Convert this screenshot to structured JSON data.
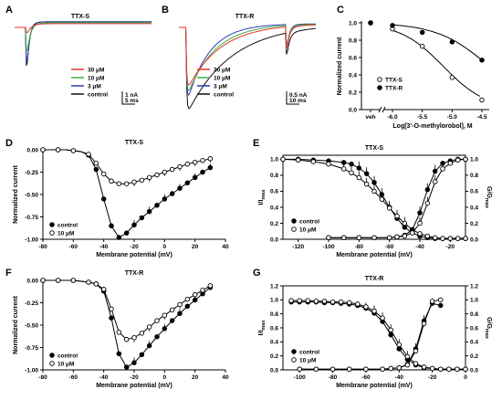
{
  "colors": {
    "c30": "#e8342e",
    "c10": "#3fae3a",
    "c3": "#2b3bb3",
    "ctl": "#111111"
  },
  "panels": [
    {
      "id": "A",
      "label": "A",
      "title": "TTX-S",
      "type": "traces",
      "legend": [
        "30 μM",
        "10 μM",
        "3 μM",
        "control"
      ],
      "scale": {
        "y": "1 nA",
        "x": "5 ms"
      },
      "traces": [
        {
          "name": "control",
          "color_key": "ctl",
          "peak": 1.0,
          "tau_dec": 0.018,
          "late": -0.06
        },
        {
          "name": "3 μM",
          "color_key": "c3",
          "peak": 0.88,
          "tau_dec": 0.02,
          "late": -0.06
        },
        {
          "name": "10 μM",
          "color_key": "c10",
          "peak": 0.56,
          "tau_dec": 0.024,
          "late": -0.05
        },
        {
          "name": "30 μM",
          "color_key": "c30",
          "peak": 0.16,
          "tau_dec": 0.03,
          "late": -0.04
        }
      ]
    },
    {
      "id": "B",
      "label": "B",
      "title": "TTX-R",
      "type": "traces",
      "legend": [
        "30 μM",
        "10 μM",
        "3 μM",
        "control"
      ],
      "scale": {
        "y": "0.5 nA",
        "x": "10 ms"
      },
      "traces": [
        {
          "name": "control",
          "color_key": "ctl",
          "peak": 1.0,
          "tau_dec": 0.32,
          "late": -0.04
        },
        {
          "name": "3 μM",
          "color_key": "c3",
          "peak": 0.9,
          "tau_dec": 0.16,
          "late": -0.04
        },
        {
          "name": "10 μM",
          "color_key": "c10",
          "peak": 0.82,
          "tau_dec": 0.2,
          "late": -0.04
        },
        {
          "name": "30 μM",
          "color_key": "c30",
          "peak": 0.74,
          "tau_dec": 0.24,
          "late": -0.04
        }
      ]
    },
    {
      "id": "C",
      "label": "C",
      "type": "dose",
      "ylabel": "Normalized current",
      "xlabel": "Log[3'-O-methylorobol], M",
      "x_ticks": [
        "veh",
        "-6.0",
        "-5.5",
        "-5.0",
        "-4.5"
      ],
      "y_ticks": [
        "0.0",
        "0.2",
        "0.4",
        "0.6",
        "0.8",
        "1.0"
      ],
      "legend": [
        "TTX-S",
        "TTX-R"
      ],
      "series": [
        {
          "name": "TTX-S",
          "marker": "open",
          "x": [
            "veh",
            -6.0,
            -5.5,
            -5.0,
            -4.5
          ],
          "y": [
            1.0,
            0.93,
            0.73,
            0.37,
            0.11
          ],
          "ic50": -5.15,
          "hill": 1.2
        },
        {
          "name": "TTX-R",
          "marker": "filled",
          "x": [
            "veh",
            -6.0,
            -5.5,
            -5.0,
            -4.5
          ],
          "y": [
            1.0,
            0.97,
            0.89,
            0.78,
            0.57
          ],
          "ic50": -4.38,
          "hill": 1.0
        }
      ]
    },
    {
      "id": "D",
      "label": "D",
      "title": "TTX-S",
      "type": "iv",
      "ylabel": "Normalized current",
      "xlabel": "Membrane potential (mV)",
      "x_ticks": [
        "-80",
        "-60",
        "-40",
        "-20",
        "0",
        "20",
        "40"
      ],
      "y_ticks": [
        "0.00",
        "-0.25",
        "-0.50",
        "-0.75",
        "-1.00"
      ],
      "legend": [
        "control",
        "10 μM"
      ],
      "series": [
        {
          "name": "control",
          "marker": "filled",
          "x": [
            -80,
            -75,
            -70,
            -65,
            -60,
            -55,
            -50,
            -45,
            -40,
            -35,
            -30,
            -25,
            -20,
            -15,
            -10,
            -5,
            0,
            5,
            10,
            15,
            20,
            25,
            30
          ],
          "y": [
            0,
            0,
            0,
            0,
            -0.01,
            -0.02,
            -0.06,
            -0.22,
            -0.55,
            -0.85,
            -0.98,
            -0.93,
            -0.84,
            -0.76,
            -0.69,
            -0.62,
            -0.55,
            -0.49,
            -0.43,
            -0.37,
            -0.31,
            -0.25,
            -0.2
          ]
        },
        {
          "name": "10 μM",
          "marker": "open",
          "x": [
            -80,
            -75,
            -70,
            -65,
            -60,
            -55,
            -50,
            -45,
            -40,
            -35,
            -30,
            -25,
            -20,
            -15,
            -10,
            -5,
            0,
            5,
            10,
            15,
            20,
            25,
            30
          ],
          "y": [
            0,
            0,
            0,
            0,
            -0.01,
            -0.02,
            -0.05,
            -0.15,
            -0.27,
            -0.35,
            -0.38,
            -0.38,
            -0.36,
            -0.34,
            -0.31,
            -0.28,
            -0.25,
            -0.22,
            -0.19,
            -0.16,
            -0.14,
            -0.12,
            -0.1
          ]
        }
      ]
    },
    {
      "id": "E",
      "label": "E",
      "title": "TTX-S",
      "type": "gv",
      "ylabel_left": "I/I",
      "ylabel_left_sub": "max",
      "ylabel_right": "G/G",
      "ylabel_right_sub": "max",
      "xlabel": "Membrane potential (mV)",
      "x_ticks": [
        "-120",
        "-100",
        "-80",
        "-60",
        "-40",
        "-20"
      ],
      "y_ticks": [
        "0.0",
        "0.2",
        "0.4",
        "0.6",
        "0.8",
        "1.0"
      ],
      "legend": [
        "control",
        "10 μM"
      ],
      "series": [
        {
          "name": "control",
          "marker": "filled",
          "x": [
            -130,
            -120,
            -110,
            -100,
            -90,
            -85,
            -80,
            -75,
            -70,
            -65,
            -60,
            -55,
            -50,
            -45,
            -40,
            -35,
            -30,
            -25,
            -20,
            -15,
            -10
          ],
          "y": [
            1.0,
            1.0,
            0.99,
            0.98,
            0.96,
            0.94,
            0.89,
            0.82,
            0.71,
            0.56,
            0.4,
            0.26,
            0.15,
            0.08,
            0.04,
            0.02,
            0.01,
            0.01,
            0.01,
            0.01,
            0.01
          ]
        },
        {
          "name": "10 μM",
          "marker": "open",
          "x": [
            -130,
            -120,
            -110,
            -100,
            -90,
            -85,
            -80,
            -75,
            -70,
            -65,
            -60,
            -55,
            -50,
            -45,
            -40,
            -35,
            -30,
            -25,
            -20,
            -15,
            -10
          ],
          "y": [
            1.0,
            0.99,
            0.97,
            0.94,
            0.88,
            0.83,
            0.77,
            0.69,
            0.6,
            0.5,
            0.39,
            0.29,
            0.2,
            0.12,
            0.07,
            0.04,
            0.02,
            0.01,
            0.01,
            0.01,
            0.01
          ]
        },
        {
          "name": "control G",
          "marker": "filled",
          "x": [
            -100,
            -90,
            -80,
            -70,
            -60,
            -55,
            -50,
            -45,
            -40,
            -35,
            -30,
            -25,
            -20,
            -15,
            -10
          ],
          "y": [
            0.02,
            0.02,
            0.02,
            0.02,
            0.02,
            0.03,
            0.05,
            0.12,
            0.33,
            0.62,
            0.85,
            0.95,
            0.98,
            1.0,
            1.0
          ]
        },
        {
          "name": "10 μM G",
          "marker": "open",
          "x": [
            -100,
            -90,
            -80,
            -70,
            -60,
            -55,
            -50,
            -45,
            -40,
            -35,
            -30,
            -25,
            -20,
            -15,
            -10
          ],
          "y": [
            0.02,
            0.02,
            0.02,
            0.02,
            0.02,
            0.03,
            0.04,
            0.08,
            0.2,
            0.45,
            0.72,
            0.88,
            0.95,
            0.99,
            1.0
          ]
        }
      ]
    },
    {
      "id": "F",
      "label": "F",
      "title": "TTX-R",
      "type": "iv",
      "ylabel": "Normalized current",
      "xlabel": "Membrane potential (mV)",
      "x_ticks": [
        "-80",
        "-60",
        "-40",
        "-20",
        "0",
        "20",
        "40"
      ],
      "y_ticks": [
        "0.00",
        "-0.25",
        "-0.50",
        "-0.75",
        "-1.00"
      ],
      "legend": [
        "control",
        "10 μM"
      ],
      "series": [
        {
          "name": "control",
          "marker": "filled",
          "x": [
            -80,
            -75,
            -70,
            -65,
            -60,
            -55,
            -50,
            -45,
            -40,
            -35,
            -30,
            -25,
            -20,
            -15,
            -10,
            -5,
            0,
            5,
            10,
            15,
            20,
            25,
            30
          ],
          "y": [
            0,
            0,
            0,
            0,
            0,
            -0.01,
            -0.02,
            -0.04,
            -0.12,
            -0.42,
            -0.82,
            -0.97,
            -0.92,
            -0.83,
            -0.73,
            -0.63,
            -0.54,
            -0.45,
            -0.37,
            -0.29,
            -0.22,
            -0.15,
            -0.08
          ]
        },
        {
          "name": "10 μM",
          "marker": "open",
          "x": [
            -80,
            -75,
            -70,
            -65,
            -60,
            -55,
            -50,
            -45,
            -40,
            -35,
            -30,
            -25,
            -20,
            -15,
            -10,
            -5,
            0,
            5,
            10,
            15,
            20,
            25,
            30
          ],
          "y": [
            0,
            0,
            0,
            0,
            0,
            -0.01,
            -0.02,
            -0.04,
            -0.1,
            -0.32,
            -0.58,
            -0.66,
            -0.64,
            -0.59,
            -0.52,
            -0.45,
            -0.39,
            -0.33,
            -0.27,
            -0.21,
            -0.16,
            -0.11,
            -0.06
          ]
        }
      ]
    },
    {
      "id": "G",
      "label": "G",
      "title": "TTX-R",
      "type": "gv",
      "ylabel_left": "I/I",
      "ylabel_left_sub": "max",
      "ylabel_right": "G/G",
      "ylabel_right_sub": "max",
      "xlabel": "Membrane potential (mV)",
      "x_ticks": [
        "-100",
        "-80",
        "-60",
        "-40",
        "-20",
        "0"
      ],
      "y_ticks": [
        "0.0",
        "0.2",
        "0.4",
        "0.6",
        "0.8",
        "1.0",
        "1.2"
      ],
      "legend": [
        "control",
        "10 μM"
      ],
      "series": [
        {
          "name": "control",
          "marker": "filled",
          "x": [
            -105,
            -100,
            -95,
            -90,
            -85,
            -80,
            -75,
            -70,
            -65,
            -60,
            -55,
            -50,
            -45,
            -40,
            -35,
            -30,
            -25,
            -20,
            -15,
            -10,
            -5,
            0
          ],
          "y": [
            0.97,
            0.97,
            0.97,
            0.97,
            0.96,
            0.96,
            0.95,
            0.94,
            0.92,
            0.88,
            0.81,
            0.69,
            0.5,
            0.3,
            0.15,
            0.07,
            0.03,
            0.02,
            0.01,
            0.01,
            0.01,
            0.01
          ]
        },
        {
          "name": "10 μM",
          "marker": "open",
          "x": [
            -105,
            -100,
            -95,
            -90,
            -85,
            -80,
            -75,
            -70,
            -65,
            -60,
            -55,
            -50,
            -45,
            -40,
            -35,
            -30,
            -25,
            -20,
            -15,
            -10,
            -5,
            0
          ],
          "y": [
            0.99,
            0.99,
            0.99,
            0.98,
            0.98,
            0.97,
            0.97,
            0.96,
            0.94,
            0.9,
            0.84,
            0.74,
            0.57,
            0.36,
            0.19,
            0.09,
            0.04,
            0.02,
            0.01,
            0.01,
            0.01,
            0.01
          ]
        },
        {
          "name": "control G",
          "marker": "filled",
          "x": [
            -100,
            -90,
            -80,
            -70,
            -60,
            -50,
            -45,
            -40,
            -35,
            -30,
            -25,
            -20,
            -15
          ],
          "y": [
            0.01,
            0.01,
            0.01,
            0.01,
            0.01,
            0.01,
            0.02,
            0.03,
            0.08,
            0.3,
            0.7,
            0.95,
            0.92
          ]
        },
        {
          "name": "10 μM G",
          "marker": "open",
          "x": [
            -100,
            -90,
            -80,
            -70,
            -60,
            -50,
            -45,
            -40,
            -35,
            -30,
            -25,
            -20,
            -15
          ],
          "y": [
            0.01,
            0.01,
            0.01,
            0.01,
            0.01,
            0.01,
            0.02,
            0.03,
            0.07,
            0.27,
            0.66,
            0.98,
            1.0
          ]
        }
      ]
    }
  ]
}
